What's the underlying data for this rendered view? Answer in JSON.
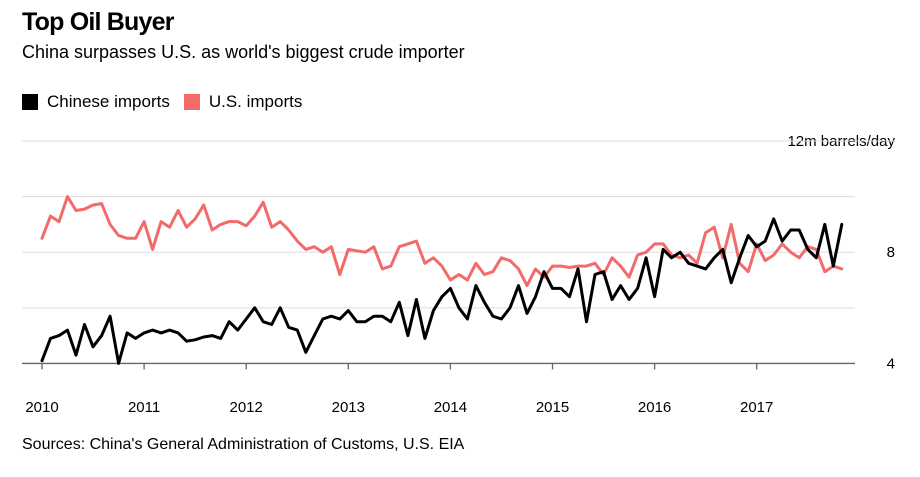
{
  "title": "Top Oil Buyer",
  "subtitle": "China surpasses U.S. as world's biggest crude importer",
  "source": "Sources: China's General Administration of Customs, U.S. EIA",
  "colors": {
    "china": "#000000",
    "us": "#f36a6a",
    "grid": "#dddddd",
    "axis": "#666666"
  },
  "chart_data": {
    "type": "line",
    "unit_label": "12m barrels/day",
    "ylim": [
      3.8,
      12
    ],
    "yticks": [
      4,
      8
    ],
    "x_start": 2010,
    "x_ticks": [
      "2010",
      "2011",
      "2012",
      "2013",
      "2014",
      "2015",
      "2016",
      "2017"
    ],
    "legend_position": "top-left",
    "grid": true,
    "series": [
      {
        "name": "Chinese imports",
        "color": "#000000",
        "values": [
          4.1,
          4.9,
          5.0,
          5.2,
          4.3,
          5.4,
          4.6,
          5.0,
          5.7,
          4.0,
          5.1,
          4.9,
          5.1,
          5.2,
          5.1,
          5.2,
          5.1,
          4.8,
          4.85,
          4.95,
          5.0,
          4.9,
          5.5,
          5.2,
          5.6,
          6.0,
          5.5,
          5.4,
          6.0,
          5.3,
          5.2,
          4.4,
          5.0,
          5.6,
          5.7,
          5.6,
          5.9,
          5.5,
          5.5,
          5.7,
          5.7,
          5.5,
          6.2,
          5.0,
          6.3,
          4.9,
          5.9,
          6.4,
          6.7,
          6.0,
          5.6,
          6.8,
          6.2,
          5.7,
          5.6,
          6.0,
          6.8,
          5.8,
          6.4,
          7.3,
          6.7,
          6.7,
          6.4,
          7.4,
          5.5,
          7.2,
          7.3,
          6.3,
          6.8,
          6.3,
          6.7,
          7.8,
          6.4,
          8.1,
          7.8,
          8.0,
          7.6,
          7.5,
          7.4,
          7.8,
          8.1,
          6.9,
          7.8,
          8.6,
          8.2,
          8.4,
          9.2,
          8.4,
          8.8,
          8.8,
          8.1,
          7.8,
          9.0,
          7.5,
          9.0
        ]
      },
      {
        "name": "U.S. imports",
        "color": "#f36a6a",
        "values": [
          8.5,
          9.3,
          9.1,
          10.0,
          9.5,
          9.55,
          9.7,
          9.75,
          9.0,
          8.6,
          8.5,
          8.5,
          9.1,
          8.1,
          9.1,
          8.9,
          9.5,
          8.9,
          9.2,
          9.7,
          8.8,
          9.0,
          9.1,
          9.1,
          8.95,
          9.3,
          9.8,
          8.9,
          9.1,
          8.8,
          8.4,
          8.1,
          8.2,
          8.0,
          8.2,
          7.2,
          8.1,
          8.05,
          8.0,
          8.2,
          7.4,
          7.5,
          8.2,
          8.3,
          8.4,
          7.6,
          7.8,
          7.5,
          7.0,
          7.2,
          7.0,
          7.6,
          7.2,
          7.3,
          7.8,
          7.7,
          7.4,
          6.8,
          7.4,
          7.1,
          7.5,
          7.5,
          7.45,
          7.5,
          7.5,
          7.6,
          7.2,
          7.8,
          7.5,
          7.1,
          7.9,
          8.0,
          8.3,
          8.3,
          7.9,
          7.8,
          7.9,
          7.6,
          8.7,
          8.9,
          7.8,
          9.0,
          7.6,
          7.3,
          8.3,
          7.7,
          7.9,
          8.3,
          8.0,
          7.8,
          8.2,
          8.1,
          7.3,
          7.5,
          7.4
        ]
      }
    ]
  }
}
